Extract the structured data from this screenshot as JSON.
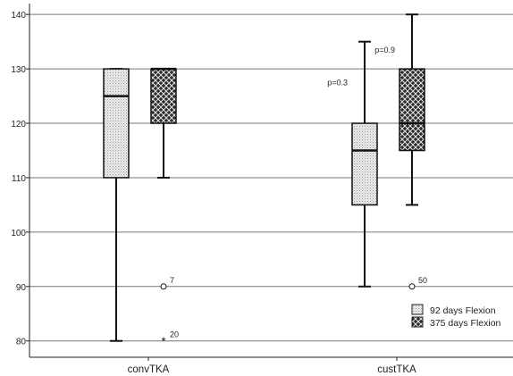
{
  "chart_data": {
    "type": "boxplot",
    "title": "",
    "xlabel": "",
    "ylabel": "",
    "ylim": [
      77,
      142
    ],
    "y_ticks": [
      "80",
      "90",
      "100",
      "110",
      "120",
      "130",
      "140"
    ],
    "y_tick_values": [
      80,
      90,
      100,
      110,
      120,
      130,
      140
    ],
    "grid": true,
    "legend_position": "bottom-right",
    "categories": [
      "convTKA",
      "custTKA"
    ],
    "series": [
      {
        "name": "92 days Flexion",
        "pattern": "dotted-light",
        "boxes": [
          {
            "category": "convTKA",
            "min": 80,
            "q1": 110,
            "median": 125,
            "q3": 130,
            "max": 130,
            "outliers": []
          },
          {
            "category": "custTKA",
            "min": 90,
            "q1": 105,
            "median": 115,
            "q3": 120,
            "max": 135,
            "outliers": []
          }
        ]
      },
      {
        "name": "375 days Flexion",
        "pattern": "crosshatch-dark",
        "boxes": [
          {
            "category": "convTKA",
            "min": 110,
            "q1": 120,
            "median": 130,
            "q3": 130,
            "max": 130,
            "outliers": [
              {
                "value": 90,
                "label": "7",
                "marker": "circle"
              },
              {
                "value": 80,
                "label": "20",
                "marker": "star"
              }
            ]
          },
          {
            "category": "custTKA",
            "min": 105,
            "q1": 115,
            "median": 120,
            "q3": 130,
            "max": 140,
            "outliers": [
              {
                "value": 90,
                "label": "50",
                "marker": "circle"
              }
            ]
          }
        ]
      }
    ],
    "annotations": [
      {
        "text": "p=0.3",
        "category": "custTKA",
        "series": 0,
        "y": 127
      },
      {
        "text": "p=0.9",
        "category": "custTKA",
        "series": 1,
        "y": 133
      }
    ]
  }
}
